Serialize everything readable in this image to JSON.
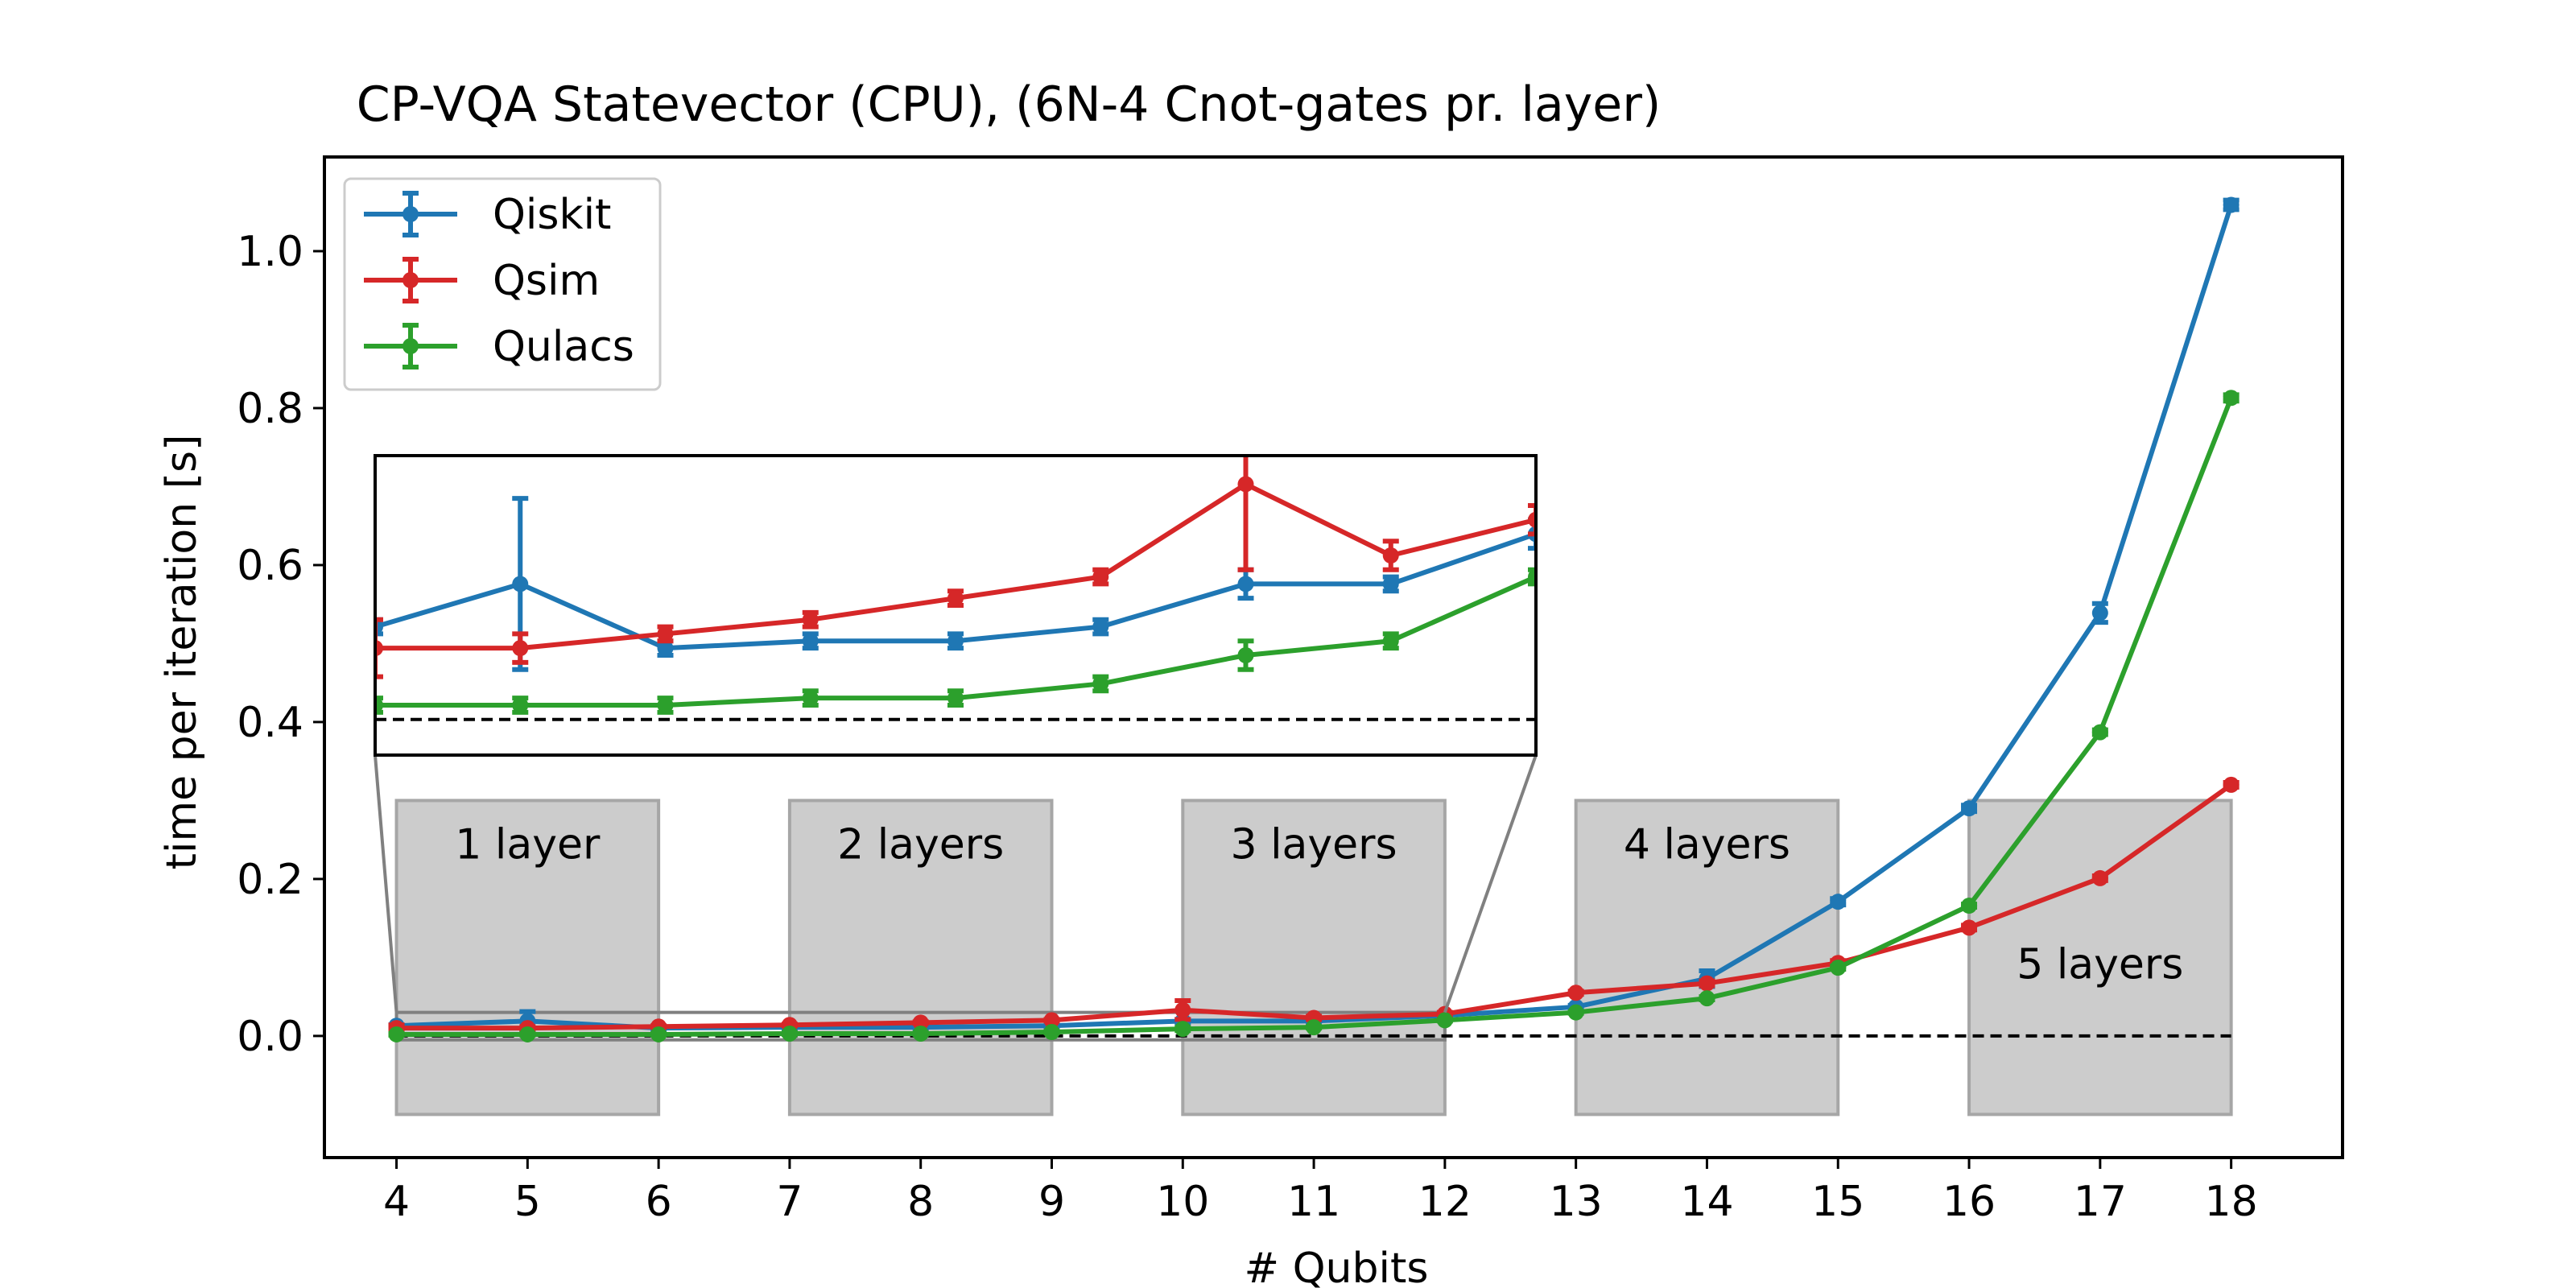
{
  "chart_data": {
    "type": "line",
    "title": "CP-VQA Statevector (CPU),  (6N-4 Cnot-gates pr. layer)",
    "xlabel": "# Qubits",
    "ylabel": "time per iteration [s]",
    "xlim": [
      3.45,
      18.85
    ],
    "ylim": [
      -0.155,
      1.12
    ],
    "xticks": [
      "4",
      "5",
      "6",
      "7",
      "8",
      "9",
      "10",
      "11",
      "12",
      "13",
      "14",
      "15",
      "16",
      "17",
      "18"
    ],
    "yticks": [
      "0.0",
      "0.2",
      "0.4",
      "0.6",
      "0.8",
      "1.0"
    ],
    "legend_position": "top-left",
    "grid": false,
    "reference_line": {
      "y": 0.0,
      "style": "dashed",
      "color": "#000000"
    },
    "x": [
      4,
      5,
      6,
      7,
      8,
      9,
      10,
      11,
      12,
      13,
      14,
      15,
      16,
      17,
      18
    ],
    "series": [
      {
        "name": "Qiskit",
        "color": "#1f77b4",
        "values": [
          0.013,
          0.019,
          0.01,
          0.011,
          0.011,
          0.013,
          0.019,
          0.019,
          0.026,
          0.037,
          0.073,
          0.171,
          0.29,
          0.539,
          1.059
        ],
        "errors": [
          0.001,
          0.012,
          0.001,
          0.001,
          0.001,
          0.001,
          0.002,
          0.001,
          0.002,
          0.002,
          0.01,
          0.004,
          0.004,
          0.012,
          0.006
        ]
      },
      {
        "name": "Qsim",
        "color": "#d62728",
        "values": [
          0.01,
          0.01,
          0.012,
          0.014,
          0.017,
          0.02,
          0.033,
          0.023,
          0.028,
          0.055,
          0.067,
          0.093,
          0.138,
          0.201,
          0.32
        ],
        "errors": [
          0.004,
          0.002,
          0.001,
          0.001,
          0.001,
          0.001,
          0.012,
          0.002,
          0.002,
          0.002,
          0.003,
          0.003,
          0.003,
          0.003,
          0.003
        ]
      },
      {
        "name": "Qulacs",
        "color": "#2ca02c",
        "values": [
          0.002,
          0.002,
          0.002,
          0.003,
          0.003,
          0.005,
          0.009,
          0.011,
          0.02,
          0.03,
          0.048,
          0.087,
          0.166,
          0.387,
          0.813
        ],
        "errors": [
          0.001,
          0.001,
          0.001,
          0.001,
          0.001,
          0.001,
          0.002,
          0.001,
          0.001,
          0.001,
          0.002,
          0.002,
          0.002,
          0.003,
          0.004
        ]
      }
    ],
    "layer_regions": [
      {
        "label": "1 layer",
        "x0": 4,
        "x1": 6,
        "y0": -0.1,
        "y1": 0.3
      },
      {
        "label": "2 layers",
        "x0": 7,
        "x1": 9,
        "y0": -0.1,
        "y1": 0.3
      },
      {
        "label": "3 layers",
        "x0": 10,
        "x1": 12,
        "y0": -0.1,
        "y1": 0.3
      },
      {
        "label": "4 layers",
        "x0": 13,
        "x1": 15,
        "y0": -0.1,
        "y1": 0.3
      },
      {
        "label": "5 layers",
        "x0": 16,
        "x1": 18,
        "y0": -0.1,
        "y1": 0.3
      }
    ],
    "inset": {
      "xlim": [
        4,
        12
      ],
      "ylim": [
        -0.005,
        0.037
      ],
      "source_region": {
        "x0": 4,
        "x1": 12,
        "y0": -0.005,
        "y1": 0.03
      }
    }
  }
}
